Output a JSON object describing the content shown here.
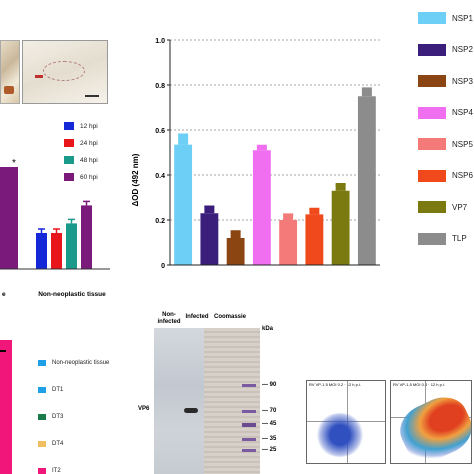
{
  "main_chart": {
    "ylabel": "ΔOD (492 nm)",
    "ylim": [
      0,
      1
    ],
    "yticks": [
      0,
      0.2,
      0.4,
      0.6,
      0.8,
      1.0
    ],
    "ytick_labels": [
      "0",
      "0.2",
      "0.4",
      "0.6",
      "0.8",
      "1.0"
    ],
    "grid": true,
    "legend_placement": "right"
  },
  "chart_data": [
    {
      "type": "bar",
      "categories": [
        "NSP1",
        "NSP2",
        "NSP3",
        "NSP4",
        "NSP5",
        "NSP6",
        "VP7",
        "TLP"
      ],
      "values": [
        0.535,
        0.23,
        0.12,
        0.51,
        0.2,
        0.225,
        0.33,
        0.75
      ],
      "errors": [
        0.045,
        0.03,
        0.03,
        0.02,
        0.025,
        0.025,
        0.03,
        0.035
      ],
      "colors": [
        "#6ecff6",
        "#3b1e7c",
        "#8b4513",
        "#f06ef0",
        "#f47a7a",
        "#f04a1c",
        "#7a7a10",
        "#8c8c8c"
      ],
      "ylabel": "ΔOD (492 nm)",
      "ylim": [
        0,
        1
      ],
      "grid": true,
      "legend": "right"
    },
    {
      "type": "bar",
      "categories": [
        "Non-neoplastic tissue"
      ],
      "series": [
        {
          "name": "12 hpi",
          "color": "#1428d8",
          "values": [
            0.3
          ]
        },
        {
          "name": "24 hpi",
          "color": "#e8161a",
          "values": [
            0.3
          ]
        },
        {
          "name": "48 hpi",
          "color": "#1a9a8a",
          "values": [
            0.38
          ]
        },
        {
          "name": "60 hpi",
          "color": "#7a1a7a",
          "values": [
            0.53
          ]
        }
      ],
      "star": "*",
      "axis_fragment": "e"
    },
    {
      "type": "legend",
      "entries": [
        {
          "name": "Non-neoplastic tissue",
          "color": "#1fa0e6"
        },
        {
          "name": "DT1",
          "color": "#1fa0e6"
        },
        {
          "name": "DT3",
          "color": "#1a7a4a"
        },
        {
          "name": "DT4",
          "color": "#f0c060"
        },
        {
          "name": "IT2",
          "color": "#f0167a"
        }
      ]
    }
  ],
  "blot": {
    "labels": {
      "non_infected": "Non-\ninfected",
      "infected": "Infected",
      "coomassie": "Coomassie"
    },
    "kda": "kDa",
    "markers": [
      "90",
      "70",
      "45",
      "35",
      "25"
    ],
    "protein": "VP6"
  },
  "flow": {
    "left_title": "RV VP-1.5 MOI 0.2 · 12 h p.i.",
    "right_title": "RV VP-1.5 MOI 0.4 · 12 h p.i."
  }
}
